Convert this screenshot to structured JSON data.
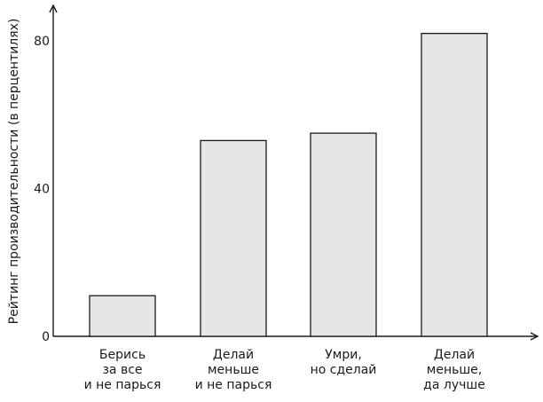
{
  "chart_data": {
    "type": "bar",
    "title": "",
    "xlabel": "",
    "ylabel": "Рейтинг производительности (в перцентилях)",
    "ylim": [
      0,
      100
    ],
    "yticks": [
      0,
      40,
      80
    ],
    "grid": false,
    "categories": [
      [
        "Берись",
        "за все",
        "и не парься"
      ],
      [
        "Делай",
        "меньше",
        "и не парься"
      ],
      [
        "Умри,",
        "но сделай"
      ],
      [
        "Делай",
        "меньше,",
        "да лучше"
      ]
    ],
    "values": [
      11,
      53,
      55,
      82
    ],
    "colors": {
      "bar_fill": "#e6e6e6",
      "bar_stroke": "#1a1a1a",
      "axis": "#1a1a1a"
    }
  }
}
